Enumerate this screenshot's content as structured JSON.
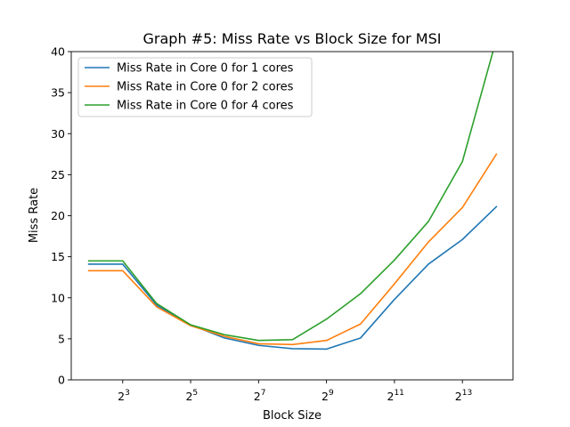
{
  "chart_data": {
    "type": "line",
    "title": "Graph #5: Miss Rate vs Block Size for MSI",
    "xlabel": "Block Size",
    "ylabel": "Miss Rate",
    "x_scale": "log2",
    "x": [
      4,
      8,
      16,
      32,
      64,
      128,
      256,
      512,
      1024,
      2048,
      4096,
      8192,
      16384
    ],
    "xlim": [
      2.8,
      23000
    ],
    "ylim": [
      0,
      40
    ],
    "x_ticks": [
      {
        "value": 8,
        "base": "2",
        "exp": "3"
      },
      {
        "value": 32,
        "base": "2",
        "exp": "5"
      },
      {
        "value": 128,
        "base": "2",
        "exp": "7"
      },
      {
        "value": 512,
        "base": "2",
        "exp": "9"
      },
      {
        "value": 2048,
        "base": "2",
        "exp": "11"
      },
      {
        "value": 8192,
        "base": "2",
        "exp": "13"
      }
    ],
    "y_ticks": [
      0,
      5,
      10,
      15,
      20,
      25,
      30,
      35,
      40
    ],
    "y_tick_labels": [
      "0",
      "5",
      "10",
      "15",
      "20",
      "25",
      "30",
      "35",
      "40"
    ],
    "grid": false,
    "legend_position": "top-left",
    "series": [
      {
        "name": "Miss Rate in Core 0 for 1 cores",
        "color": "#1f77b4",
        "values": [
          14.1,
          14.1,
          9.1,
          6.7,
          5.1,
          4.2,
          3.8,
          3.75,
          5.1,
          9.8,
          14.1,
          17.1,
          21.1
        ]
      },
      {
        "name": "Miss Rate in Core 0 for 2 cores",
        "color": "#ff7f0e",
        "values": [
          13.3,
          13.3,
          8.9,
          6.6,
          5.3,
          4.4,
          4.3,
          4.8,
          6.8,
          11.7,
          16.8,
          21.0,
          27.5
        ]
      },
      {
        "name": "Miss Rate in Core 0 for 4 cores",
        "color": "#2ca02c",
        "values": [
          14.5,
          14.5,
          9.3,
          6.7,
          5.5,
          4.8,
          4.9,
          7.4,
          10.5,
          14.6,
          19.3,
          26.6,
          41.5
        ]
      }
    ]
  }
}
